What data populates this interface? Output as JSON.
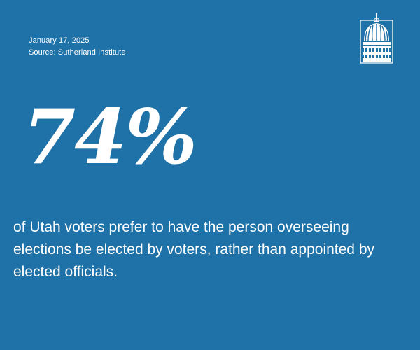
{
  "header": {
    "date": "January 17, 2025",
    "source": "Source: Sutherland Institute"
  },
  "logo": {
    "icon": "capitol-dome-icon"
  },
  "stat": {
    "value": "74%",
    "statement": "of Utah voters prefer to have the person overseeing elections be elected by voters, rather than appointed by elected officials."
  },
  "colors": {
    "background": "#1f72a8",
    "text": "#ffffff"
  }
}
